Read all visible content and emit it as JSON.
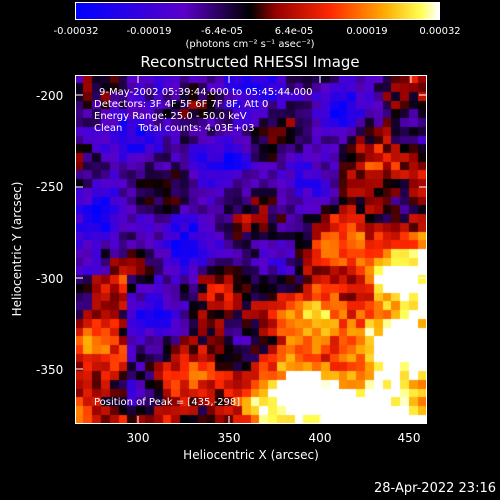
{
  "colorbar": {
    "tick_labels": [
      "-0.00032",
      "-0.00019",
      "-6.4e-05",
      "6.4e-05",
      "0.00019",
      "0.00032"
    ],
    "units": "(photons cm⁻² s⁻¹ asec⁻²)"
  },
  "title": "Reconstructed RHESSI Image",
  "annotations": {
    "time": "9-May-2002 05:39:44.000 to 05:45:44.000",
    "detectors": "Detectors: 3F 4F 5F 6F 7F 8F, Att 0",
    "energy": "Energy Range: 25.0 - 50.0 keV",
    "clean": "Clean     Total counts: 4.03E+03",
    "peak": "Position of Peak = [435,-298]"
  },
  "axes": {
    "xlabel": "Heliocentric X (arcsec)",
    "ylabel": "Heliocentric Y (arcsec)",
    "xticks": [
      "300",
      "350",
      "400",
      "450"
    ],
    "yticks": [
      "-200",
      "-250",
      "-300",
      "-350"
    ],
    "xlim": [
      265,
      458
    ],
    "ylim": [
      -395,
      -189
    ]
  },
  "footer": "28-Apr-2022 23:16"
}
